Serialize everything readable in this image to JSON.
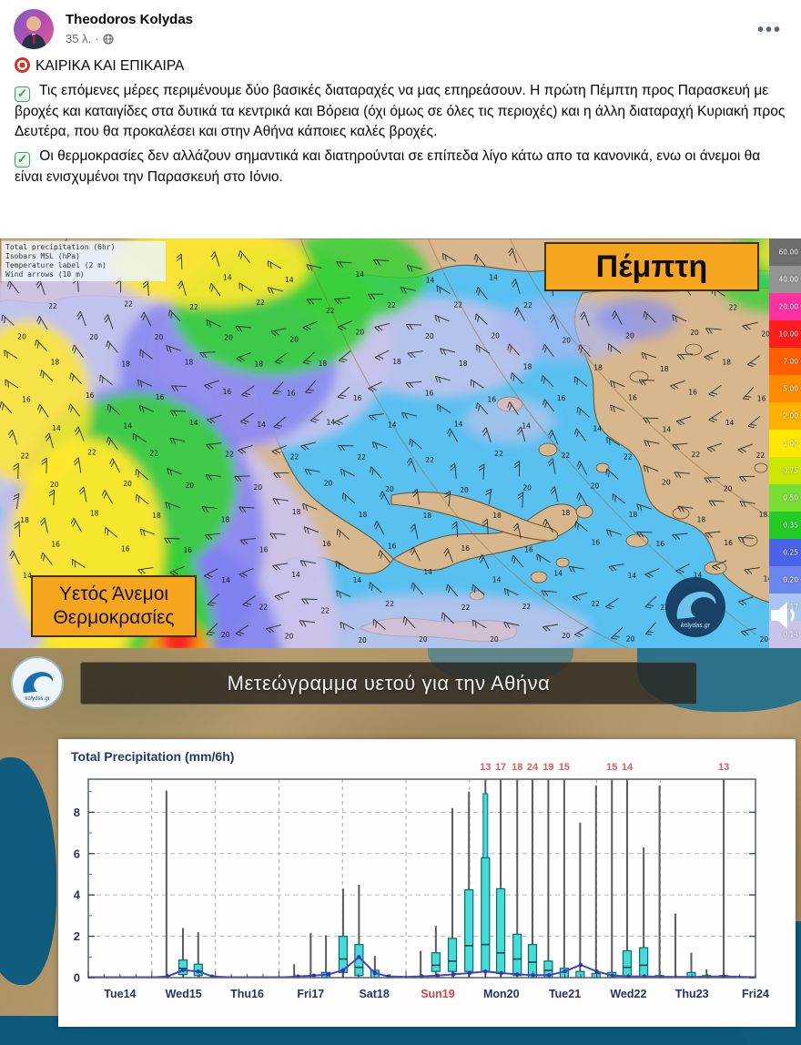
{
  "post": {
    "author": "Theodoros Kolydas",
    "time": "35 λ.",
    "separator": "·",
    "audience": "public",
    "lines": [
      {
        "icon": "target",
        "text": "ΚΑΙΡΙΚΑ ΚΑΙ ΕΠΙΚΑΙΡΑ"
      },
      {
        "icon": "check",
        "text": "Τις επόμενες μέρες περιμένουμε δύο βασικές διαταραχές να μας επηρεάσουν. Η πρώτη Πέμπτη προς Παρασκευή με βροχές και καταιγίδες στα δυτικά τα κεντρικά και Βόρεια (όχι όμως σε όλες τις περιοχές) και η άλλη διαταραχή  Κυριακή προς Δευτέρα, που θα προκαλέσει και στην Αθήνα κάποιες καλές βροχές."
      },
      {
        "icon": "check",
        "text": "Οι θερμοκρασίες δεν αλλάζουν σημαντικά και διατηρούνται σε επίπεδα λίγο κάτω απο τα κανονικά, ενω οι άνεμοι θα είναι ενισχυμένοι την Παρασκευή στο Ιόνιο."
      }
    ]
  },
  "map": {
    "legend_lines": [
      "Total precipitation (6hr)",
      "Isobars MSL (hPa)",
      "Temperature label (2 m)",
      "Wind arrows (10 m)"
    ],
    "day_label": "Πέμπτη",
    "corner_line1": "Υετός Άνεμοι",
    "corner_line2": "Θερμοκρασίες",
    "watermark": "kolydas.gr",
    "colorbar": [
      {
        "value": "60.00",
        "color": "#6e6e6e"
      },
      {
        "value": "40.00",
        "color": "#949494"
      },
      {
        "value": "20.00",
        "color": "#ff2fa4"
      },
      {
        "value": "10.00",
        "color": "#ff1c1c"
      },
      {
        "value": "7.00",
        "color": "#ff5f00"
      },
      {
        "value": "5.00",
        "color": "#ff8c00"
      },
      {
        "value": "2.00",
        "color": "#ffb300"
      },
      {
        "value": "1.00",
        "color": "#ffe800"
      },
      {
        "value": "0.75",
        "color": "#cce800"
      },
      {
        "value": "0.50",
        "color": "#7add33"
      },
      {
        "value": "0.35",
        "color": "#22cc22"
      },
      {
        "value": "0.25",
        "color": "#4a63e8"
      },
      {
        "value": "0.20",
        "color": "#6c86ee"
      },
      {
        "value": "0.17",
        "color": "#a9c6f2"
      },
      {
        "value": "0.14",
        "color": "#ccc3ea"
      }
    ]
  },
  "meteogram": {
    "header_title": "Μετεώγραμμα υετού για την Αθήνα",
    "watermark": "kolydas.gr"
  },
  "chart_data": {
    "type": "bar",
    "subtype": "ensemble-box-whisker-meteogram",
    "title": "Total Precipitation (mm/6h)",
    "xlabel": "",
    "ylabel": "",
    "ylim": [
      0,
      9.6
    ],
    "yticks": [
      0,
      2,
      4,
      6,
      8
    ],
    "grid": "dashed",
    "days": [
      {
        "label": "Tue14",
        "red": false
      },
      {
        "label": "Wed15",
        "red": false
      },
      {
        "label": "Thu16",
        "red": false
      },
      {
        "label": "Fri17",
        "red": false
      },
      {
        "label": "Sat18",
        "red": false
      },
      {
        "label": "Sun19",
        "red": true
      },
      {
        "label": "Mon20",
        "red": false
      },
      {
        "label": "Tue21",
        "red": false
      },
      {
        "label": "Wed22",
        "red": false
      },
      {
        "label": "Thu23",
        "red": false
      },
      {
        "label": "Fri24",
        "red": false
      }
    ],
    "bars": [
      {
        "p": 1.23,
        "w": 9.05
      },
      {
        "p": 1.49,
        "w": 2.4,
        "b": [
          0.15,
          0.85
        ],
        "m": 0.45
      },
      {
        "p": 1.73,
        "w": 2.2,
        "b": [
          0.1,
          0.65
        ],
        "m": 0.3
      },
      {
        "p": 3.24,
        "w": 0.65
      },
      {
        "p": 3.5,
        "w": 2.15
      },
      {
        "p": 3.74,
        "w": 2.05,
        "b": [
          0,
          0.25
        ]
      },
      {
        "p": 4.01,
        "w": 4.3,
        "b": [
          0.25,
          2.0
        ],
        "m": 0.9
      },
      {
        "p": 4.26,
        "w": 4.5,
        "b": [
          0.1,
          1.6
        ],
        "m": 0.5
      },
      {
        "p": 4.51,
        "w": 1.05,
        "b": [
          0,
          0.35
        ]
      },
      {
        "p": 5.23,
        "w": 1.3
      },
      {
        "p": 5.47,
        "w": 2.5,
        "b": [
          0.3,
          1.2
        ],
        "m": 0.6
      },
      {
        "p": 5.73,
        "w": 8.2,
        "b": [
          0.3,
          1.9
        ],
        "m": 0.8
      },
      {
        "p": 5.99,
        "w": 9.0,
        "b": [
          0.3,
          4.25
        ],
        "m": 1.55
      },
      {
        "p": 6.25,
        "capped": true,
        "max": "13",
        "b": [
          0.3,
          5.8
        ],
        "b2": [
          5.8,
          8.9
        ],
        "m": 1.6
      },
      {
        "p": 6.49,
        "capped": true,
        "max": "17",
        "b": [
          0.2,
          4.3
        ],
        "m": 1.2
      },
      {
        "p": 6.75,
        "capped": true,
        "max": "18",
        "b": [
          0.1,
          2.1
        ],
        "m": 0.9
      },
      {
        "p": 6.99,
        "capped": true,
        "max": "24",
        "b": [
          0,
          1.6
        ],
        "m": 0.75
      },
      {
        "p": 7.24,
        "capped": true,
        "max": "19",
        "b": [
          0,
          0.8
        ],
        "m": 0.35
      },
      {
        "p": 7.49,
        "capped": true,
        "max": "15",
        "b": [
          0,
          0.45
        ]
      },
      {
        "p": 7.74,
        "w": 7.5,
        "b": [
          0,
          0.3
        ]
      },
      {
        "p": 7.99,
        "w": 9.3,
        "b": [
          0,
          0.2
        ]
      },
      {
        "p": 8.24,
        "capped": true,
        "max": "15",
        "b": [
          0,
          0.25
        ]
      },
      {
        "p": 8.48,
        "capped": true,
        "max": "14",
        "b": [
          0,
          1.3
        ],
        "m": 0.5
      },
      {
        "p": 8.74,
        "w": 6.3,
        "b": [
          0,
          1.45
        ],
        "m": 0.6
      },
      {
        "p": 8.99,
        "w": 9.3,
        "b": [
          0,
          0.1
        ]
      },
      {
        "p": 9.24,
        "w": 3.1
      },
      {
        "p": 9.49,
        "w": 1.2,
        "b": [
          0,
          0.25
        ]
      },
      {
        "p": 9.73,
        "w": 0.4,
        "b": [
          0,
          0.1
        ]
      },
      {
        "p": 10.0,
        "capped": true,
        "max": "13",
        "b": [
          0,
          0.1
        ]
      }
    ],
    "control_line": [
      [
        0,
        0.02
      ],
      [
        1.05,
        0.02
      ],
      [
        1.25,
        0.06
      ],
      [
        1.49,
        0.36
      ],
      [
        1.73,
        0.3
      ],
      [
        1.95,
        0.06
      ],
      [
        2.2,
        0.02
      ],
      [
        3.1,
        0.02
      ],
      [
        3.3,
        0.06
      ],
      [
        3.55,
        0.1
      ],
      [
        3.78,
        0.16
      ],
      [
        4.01,
        0.36
      ],
      [
        4.26,
        1.0
      ],
      [
        4.51,
        0.22
      ],
      [
        4.72,
        0.06
      ],
      [
        5.0,
        0.04
      ],
      [
        5.25,
        0.06
      ],
      [
        5.5,
        0.1
      ],
      [
        5.75,
        0.16
      ],
      [
        6.0,
        0.22
      ],
      [
        6.25,
        0.3
      ],
      [
        6.5,
        0.22
      ],
      [
        6.75,
        0.16
      ],
      [
        7.0,
        0.12
      ],
      [
        7.25,
        0.12
      ],
      [
        7.5,
        0.3
      ],
      [
        7.75,
        0.62
      ],
      [
        8.0,
        0.3
      ],
      [
        8.25,
        0.1
      ],
      [
        8.5,
        0.06
      ],
      [
        8.75,
        0.06
      ],
      [
        9.0,
        0.04
      ],
      [
        9.5,
        0.04
      ],
      [
        10.0,
        0.06
      ],
      [
        10.5,
        0.02
      ]
    ],
    "colors": {
      "box_fill": "#45dbd9",
      "box_stroke": "#0a6a6a",
      "whisker": "#5a5a5a",
      "control_line": "#4343c9",
      "max_label": "#d95b5b",
      "axis_text": "#24356b",
      "red_day": "#d04545"
    }
  }
}
